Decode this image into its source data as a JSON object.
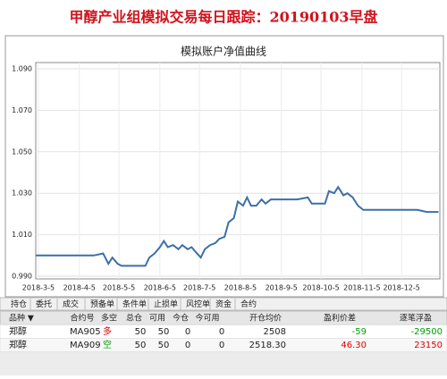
{
  "title": "甲醇产业组模拟交易每日跟踪：20190103早盘",
  "chart_data": {
    "type": "line",
    "title": "模拟账户净值曲线",
    "x": [
      "2018-3-3",
      "2018-3-12",
      "2018-3-19",
      "2018-3-26",
      "2018-4-2",
      "2018-4-9",
      "2018-4-16",
      "2018-4-23",
      "2018-4-27",
      "2018-4-30",
      "2018-5-4",
      "2018-5-7",
      "2018-5-14",
      "2018-5-21",
      "2018-5-25",
      "2018-5-28",
      "2018-6-1",
      "2018-6-5",
      "2018-6-8",
      "2018-6-11",
      "2018-6-15",
      "2018-6-19",
      "2018-6-22",
      "2018-6-26",
      "2018-6-29",
      "2018-7-3",
      "2018-7-6",
      "2018-7-9",
      "2018-7-13",
      "2018-7-17",
      "2018-7-20",
      "2018-7-24",
      "2018-7-27",
      "2018-7-31",
      "2018-8-3",
      "2018-8-7",
      "2018-8-10",
      "2018-8-13",
      "2018-8-17",
      "2018-8-21",
      "2018-8-24",
      "2018-8-28",
      "2018-9-3",
      "2018-9-10",
      "2018-9-17",
      "2018-9-25",
      "2018-9-28",
      "2018-10-8",
      "2018-10-11",
      "2018-10-15",
      "2018-10-18",
      "2018-10-22",
      "2018-10-25",
      "2018-10-29",
      "2018-11-2",
      "2018-11-6",
      "2018-11-12",
      "2018-11-19",
      "2018-11-26",
      "2018-12-3",
      "2018-12-10",
      "2018-12-17",
      "2018-12-24",
      "2019-1-2"
    ],
    "series": [
      {
        "color": "#3d6fa8",
        "values": [
          1.0,
          1.0,
          1.0,
          1.0,
          1.0,
          1.0,
          1.0,
          1.001,
          0.996,
          0.999,
          0.996,
          0.995,
          0.995,
          0.995,
          0.995,
          0.999,
          1.001,
          1.004,
          1.007,
          1.004,
          1.005,
          1.003,
          1.005,
          1.003,
          1.004,
          1.001,
          0.999,
          1.003,
          1.005,
          1.006,
          1.008,
          1.009,
          1.016,
          1.018,
          1.026,
          1.024,
          1.028,
          1.024,
          1.024,
          1.027,
          1.025,
          1.027,
          1.027,
          1.027,
          1.027,
          1.028,
          1.025,
          1.025,
          1.031,
          1.03,
          1.033,
          1.029,
          1.03,
          1.028,
          1.024,
          1.022,
          1.022,
          1.022,
          1.022,
          1.022,
          1.022,
          1.022,
          1.021,
          1.021
        ]
      }
    ],
    "xlim": [
      "2018-3-3",
      "2019-1-3"
    ],
    "xticks": [
      "2018-3-5",
      "2018-4-5",
      "2018-5-5",
      "2018-6-5",
      "2018-7-5",
      "2018-8-5",
      "2018-9-5",
      "2018-10-5",
      "2018-11-5",
      "2018-12-5"
    ],
    "ylim": [
      0.99,
      1.09
    ],
    "yticks": [
      {
        "value": 0.99,
        "label": "0.990"
      },
      {
        "value": 1.01,
        "label": "1.010"
      },
      {
        "value": 1.03,
        "label": "1.030"
      },
      {
        "value": 1.05,
        "label": "1.050"
      },
      {
        "value": 1.07,
        "label": "1.070"
      },
      {
        "value": 1.09,
        "label": "1.090"
      }
    ],
    "grid": true
  },
  "tabs": [
    "持仓",
    "委托",
    "成交",
    "预备单",
    "条件单",
    "止损单",
    "风控单",
    "资金",
    "合约"
  ],
  "table": {
    "header": [
      "品种 ▼",
      "合约号",
      "多空",
      "总仓",
      "可用",
      "今仓",
      "今可用",
      "开仓均价",
      "盈利价差",
      "逐笔浮盈"
    ],
    "rows": [
      [
        "郑醇",
        "MA905",
        "多",
        "50",
        "50",
        "0",
        "0",
        "2508",
        "-59",
        "-29500"
      ],
      [
        "郑醇",
        "MA909",
        "空",
        "50",
        "50",
        "0",
        "0",
        "2518.30",
        "46.30",
        "23150"
      ]
    ]
  }
}
